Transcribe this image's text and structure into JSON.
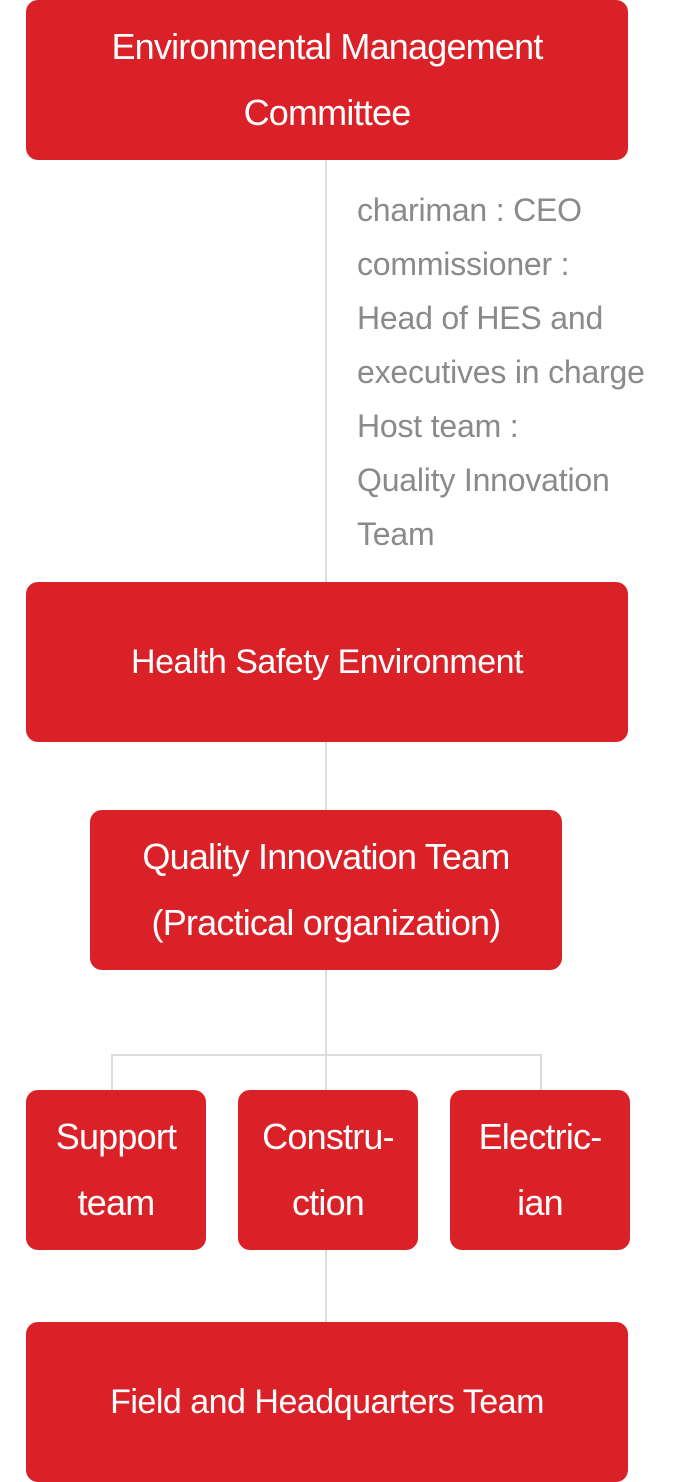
{
  "diagram": {
    "top": {
      "line1": "Environmental Management",
      "line2": "Committee"
    },
    "note": {
      "lines": [
        "chariman : CEO",
        "commissioner :",
        "Head of HES and",
        "executives in charge",
        "Host team :",
        "Quality Innovation",
        "Team"
      ]
    },
    "hse": {
      "label": "Health Safety Environment"
    },
    "qit": {
      "line1": "Quality Innovation Team",
      "line2": "(Practical organization)"
    },
    "teams": [
      {
        "line1": "Support",
        "line2": "team"
      },
      {
        "line1": "Constru-",
        "line2": "ction"
      },
      {
        "line1": "Electric-",
        "line2": "ian"
      }
    ],
    "field": {
      "label": "Field and Headquarters Team"
    },
    "colors": {
      "box": "#da2128",
      "text": "#ffffff",
      "note": "#8a8a8a",
      "line": "#dddddd"
    }
  }
}
